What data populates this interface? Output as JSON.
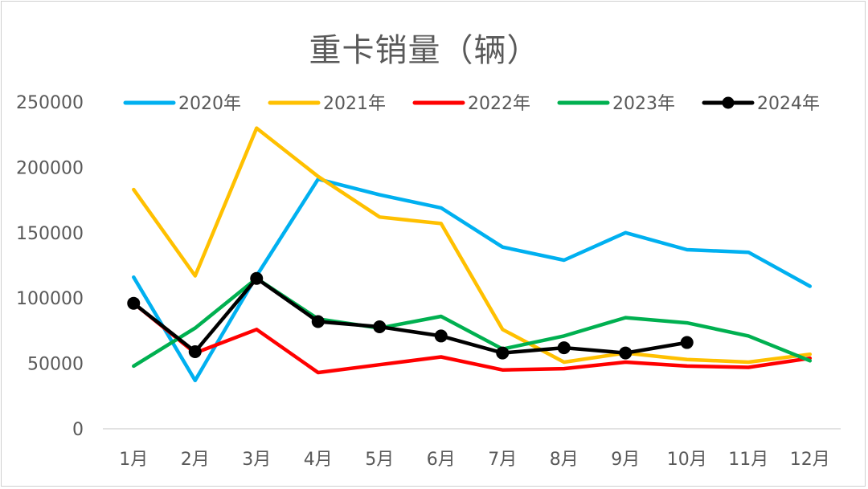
{
  "chart_data": {
    "type": "line",
    "title": "重卡销量（辆）",
    "categories": [
      "1月",
      "2月",
      "3月",
      "4月",
      "5月",
      "6月",
      "7月",
      "8月",
      "9月",
      "10月",
      "11月",
      "12月"
    ],
    "ylim": [
      0,
      250000
    ],
    "yticks": [
      0,
      50000,
      100000,
      150000,
      200000,
      250000
    ],
    "grid": false,
    "legend": "top",
    "series": [
      {
        "name": "2020年",
        "color": "#00B0F0",
        "markers": false,
        "values": [
          116000,
          37000,
          117000,
          191000,
          179000,
          169000,
          139000,
          129000,
          150000,
          137000,
          135000,
          109000
        ]
      },
      {
        "name": "2021年",
        "color": "#FFC000",
        "markers": false,
        "values": [
          183000,
          117000,
          230000,
          193000,
          162000,
          157000,
          76000,
          51000,
          58000,
          53000,
          51000,
          57000
        ]
      },
      {
        "name": "2022年",
        "color": "#FF0000",
        "markers": false,
        "values": [
          96000,
          58000,
          76000,
          43000,
          49000,
          55000,
          45000,
          46000,
          51000,
          48000,
          47000,
          54000
        ]
      },
      {
        "name": "2023年",
        "color": "#00B050",
        "markers": false,
        "values": [
          48000,
          77000,
          115000,
          84000,
          77000,
          86000,
          61000,
          71000,
          85000,
          81000,
          71000,
          52000
        ]
      },
      {
        "name": "2024年",
        "color": "#000000",
        "markers": true,
        "values": [
          96000,
          59000,
          115000,
          82000,
          78000,
          71000,
          58000,
          62000,
          58000,
          66000,
          null,
          null
        ]
      }
    ]
  }
}
